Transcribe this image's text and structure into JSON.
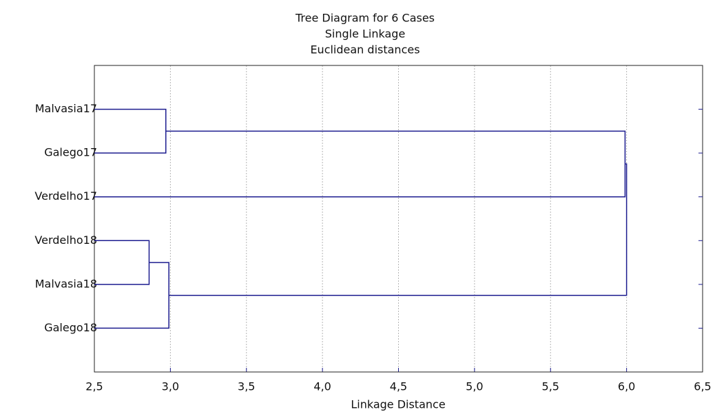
{
  "chart_data": {
    "type": "dendrogram",
    "title": "Tree Diagram for 6 Cases",
    "subtitle": "Single Linkage",
    "subtitle2": "Euclidean distances",
    "xlabel": "Linkage Distance",
    "categories": [
      "Malvasia17",
      "Galego17",
      "Verdelho17",
      "Verdelho18",
      "Malvasia18",
      "Galego18"
    ],
    "merges": [
      {
        "children": [
          0,
          1
        ],
        "distance": 2.97
      },
      {
        "children": [
          3,
          4
        ],
        "distance": 2.86
      },
      {
        "children": [
          7,
          5
        ],
        "distance": 2.99
      },
      {
        "children": [
          6,
          2
        ],
        "distance": 5.99
      },
      {
        "children": [
          9,
          8
        ],
        "distance": 6.0
      }
    ],
    "color": "#1c1c8f",
    "xlim": [
      2.5,
      6.5
    ],
    "xticks": [
      {
        "value": 2.5,
        "label": "2,5"
      },
      {
        "value": 3.0,
        "label": "3,0"
      },
      {
        "value": 3.5,
        "label": "3,5"
      },
      {
        "value": 4.0,
        "label": "4,0"
      },
      {
        "value": 4.5,
        "label": "4,5"
      },
      {
        "value": 5.0,
        "label": "5,0"
      },
      {
        "value": 5.5,
        "label": "5,5"
      },
      {
        "value": 6.0,
        "label": "6,0"
      },
      {
        "value": 6.5,
        "label": "6,5"
      }
    ],
    "grid": true
  }
}
